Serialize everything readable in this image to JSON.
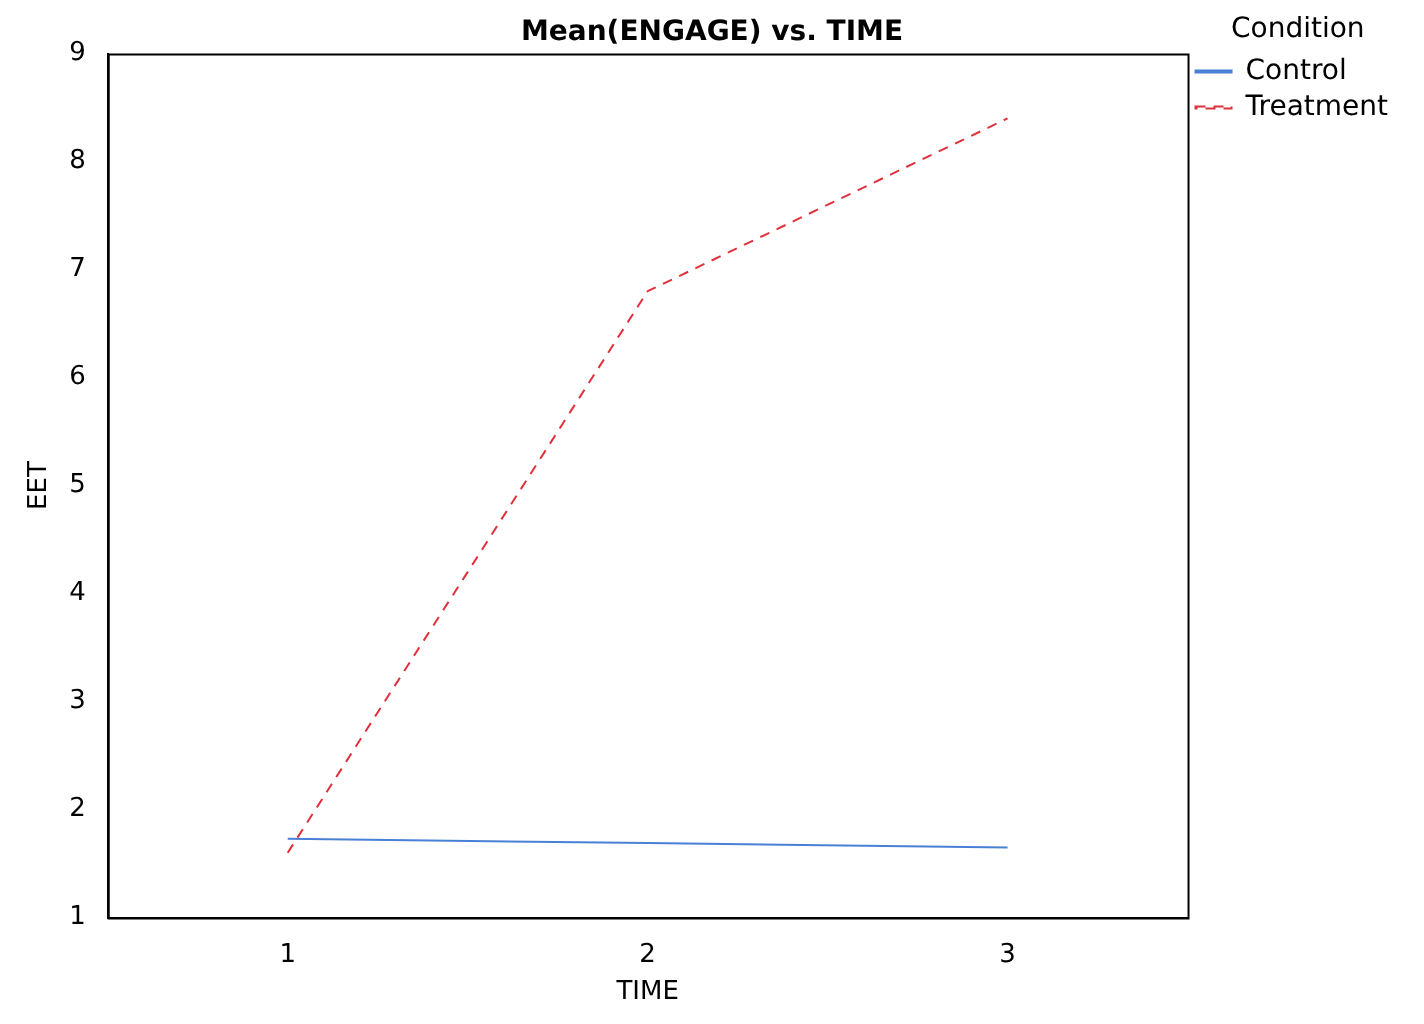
{
  "chart_data": {
    "type": "line",
    "title": "Mean(ENGAGE) vs. TIME",
    "xlabel": "TIME",
    "ylabel": "EET",
    "legend_title": "Condition",
    "x": [
      1,
      2,
      3
    ],
    "xlim": [
      0.5,
      3.5
    ],
    "xticks": [
      1,
      2,
      3
    ],
    "ylim": [
      1,
      9
    ],
    "yticks": [
      1,
      2,
      3,
      4,
      5,
      6,
      7,
      8,
      9
    ],
    "grid": false,
    "legend": "top right",
    "marker": "none",
    "series": [
      {
        "name": "Control",
        "color": "#4a7fd6",
        "values": [
          1.73,
          1.69,
          1.65
        ],
        "line_style": "solid"
      },
      {
        "name": "Treatment",
        "color": "#e0303c",
        "values": [
          1.6,
          6.8,
          8.4
        ],
        "line_style": "dashed"
      }
    ]
  }
}
